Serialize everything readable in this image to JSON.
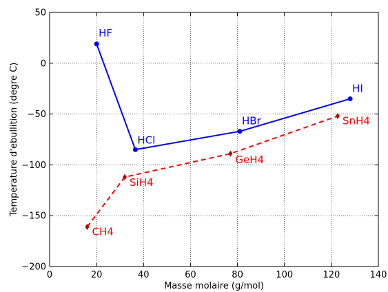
{
  "chart_data": {
    "type": "line",
    "title": "",
    "xlabel": "Masse molaire (g/mol)",
    "ylabel": "Temperature d'ebullition (degre C)",
    "xlim": [
      0,
      140
    ],
    "ylim": [
      -200,
      50
    ],
    "xticks": [
      0,
      20,
      40,
      60,
      80,
      100,
      120,
      140
    ],
    "yticks": [
      -200,
      -150,
      -100,
      -50,
      0,
      50
    ],
    "grid": true,
    "series": [
      {
        "color": "#0000ff",
        "line_style": "solid",
        "marker": "circle",
        "points": [
          {
            "x": 20,
            "y": 19,
            "label": "HF"
          },
          {
            "x": 36.5,
            "y": -85,
            "label": "HCl"
          },
          {
            "x": 81,
            "y": -67,
            "label": "HBr"
          },
          {
            "x": 128,
            "y": -35,
            "label": "HI"
          }
        ]
      },
      {
        "color": "#ff0000",
        "marker_color": "#b00000",
        "line_style": "dashed",
        "marker": "diamond",
        "points": [
          {
            "x": 16,
            "y": -161,
            "label": "CH4"
          },
          {
            "x": 32,
            "y": -112,
            "label": "SiH4"
          },
          {
            "x": 77,
            "y": -89,
            "label": "GeH4"
          },
          {
            "x": 122.7,
            "y": -52,
            "label": "SnH4"
          }
        ]
      }
    ]
  }
}
